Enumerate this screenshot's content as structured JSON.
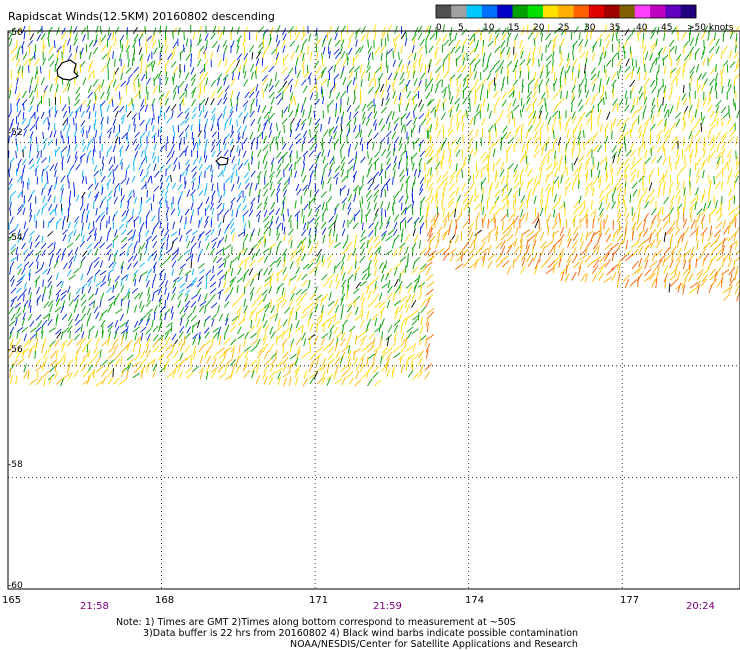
{
  "title": "Rapidscat Winds(12.5KM) 20160802 descending",
  "colorbar": {
    "labels": [
      "0",
      "5",
      "10",
      "15",
      "20",
      "25",
      "30",
      "35",
      "40",
      "45",
      ">50 knots"
    ],
    "colors": [
      "#505050",
      "#a0a0a0",
      "#00c8ff",
      "#0070ff",
      "#0000c8",
      "#00a000",
      "#00e000",
      "#ffe000",
      "#ffb000",
      "#ff6000",
      "#e00000",
      "#a00000",
      "#806000",
      "#ff40ff",
      "#c000c0",
      "#6000c0",
      "#200080"
    ]
  },
  "map": {
    "lat_labels": [
      "-50",
      "-52",
      "-54",
      "-56",
      "-58",
      "-60"
    ],
    "lon_labels": [
      "165",
      "168",
      "171",
      "174",
      "177"
    ],
    "time_labels": [
      "21:58",
      "21:59",
      "20:24"
    ],
    "lon_range": [
      165,
      179.3
    ],
    "lat_range": [
      -60,
      -50
    ],
    "swaths": [
      {
        "lon_min": 165,
        "lon_max": 173.2,
        "lat_min": -56.5,
        "lat_max": -50,
        "pass": "21:58-21:59"
      },
      {
        "lon_min": 173.2,
        "lon_max": 179.3,
        "lat_min": -55.2,
        "lat_max": -50,
        "pass": "20:24"
      }
    ],
    "wind_speed_zones_knots": [
      {
        "region": "north",
        "typical": 18
      },
      {
        "region": "west-central",
        "typical": 11
      },
      {
        "region": "south-west",
        "typical": 16
      },
      {
        "region": "south",
        "typical": 23
      },
      {
        "region": "east",
        "typical": 27
      }
    ]
  },
  "notes": {
    "line1": "Note: 1) Times are GMT 2)Times along bottom correspond to measurement at ~50S",
    "line2": "3)Data buffer is 22 hrs from 20160802 4) Black wind barbs indicate possible contamination",
    "line3": "NOAA/NESDIS/Center for Satellite Applications and Research"
  }
}
